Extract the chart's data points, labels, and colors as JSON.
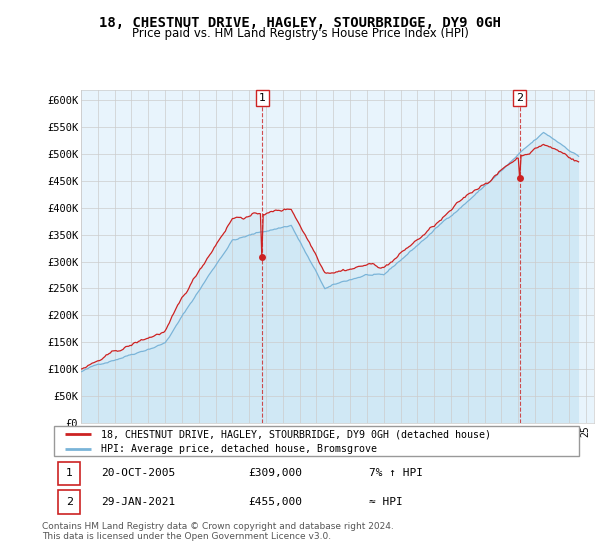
{
  "title": "18, CHESTNUT DRIVE, HAGLEY, STOURBRIDGE, DY9 0GH",
  "subtitle": "Price paid vs. HM Land Registry's House Price Index (HPI)",
  "ylim": [
    0,
    620000
  ],
  "yticks": [
    0,
    50000,
    100000,
    150000,
    200000,
    250000,
    300000,
    350000,
    400000,
    450000,
    500000,
    550000,
    600000
  ],
  "ytick_labels": [
    "£0",
    "£50K",
    "£100K",
    "£150K",
    "£200K",
    "£250K",
    "£300K",
    "£350K",
    "£400K",
    "£450K",
    "£500K",
    "£550K",
    "£600K"
  ],
  "hpi_color": "#7ab4d8",
  "hpi_fill_color": "#d0e8f5",
  "price_color": "#cc2222",
  "grid_color": "#cccccc",
  "bg_color": "#e8f4fc",
  "sale1_x": 2005.79,
  "sale1_price": 309000,
  "sale1_label": "7% ↑ HPI",
  "sale1_date": "20-OCT-2005",
  "sale2_x": 2021.08,
  "sale2_price": 455000,
  "sale2_label": "≈ HPI",
  "sale2_date": "29-JAN-2021",
  "legend_line1": "18, CHESTNUT DRIVE, HAGLEY, STOURBRIDGE, DY9 0GH (detached house)",
  "legend_line2": "HPI: Average price, detached house, Bromsgrove",
  "footer1": "Contains HM Land Registry data © Crown copyright and database right 2024.",
  "footer2": "This data is licensed under the Open Government Licence v3.0."
}
